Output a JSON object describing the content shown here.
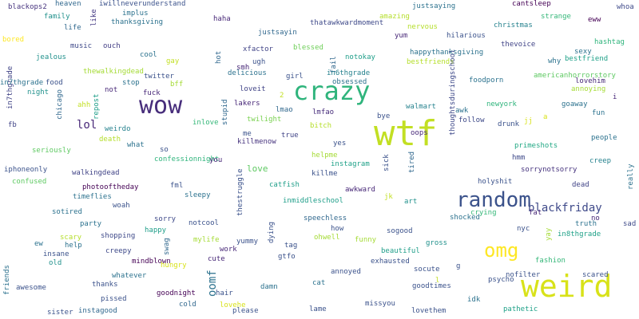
{
  "words": [
    {
      "text": "wtf",
      "color": "#c2df23",
      "weight": 1.0
    },
    {
      "text": "weird",
      "color": "#d8e219",
      "weight": 0.95
    },
    {
      "text": "crazy",
      "color": "#2fb47c",
      "weight": 0.85
    },
    {
      "text": "wow",
      "color": "#472d7b",
      "weight": 0.8
    },
    {
      "text": "random",
      "color": "#3b528b",
      "weight": 0.78
    },
    {
      "text": "omg",
      "color": "#fde725",
      "weight": 0.72
    },
    {
      "text": "blackfriday",
      "color": "#3e4989",
      "weight": 0.5
    },
    {
      "text": "lol",
      "color": "#482878",
      "weight": 0.42
    },
    {
      "text": "oomf",
      "color": "#2c728e",
      "weight": 0.4
    },
    {
      "text": "love",
      "color": "#5ec962",
      "weight": 0.35
    },
    {
      "text": "blackops2",
      "color": "#46337e"
    },
    {
      "text": "iwillneverunderstand",
      "color": "#3b528b"
    },
    {
      "text": "heaven",
      "color": "#31688e"
    },
    {
      "text": "justsaying",
      "color": "#2c728e"
    },
    {
      "text": "cantsleep",
      "color": "#440154"
    },
    {
      "text": "whoa",
      "color": "#3e4989"
    },
    {
      "text": "family",
      "color": "#21918c"
    },
    {
      "text": "implus",
      "color": "#2c728e"
    },
    {
      "text": "haha",
      "color": "#482878"
    },
    {
      "text": "thatawkwardmoment",
      "color": "#3e4989"
    },
    {
      "text": "amazing",
      "color": "#b5de2b"
    },
    {
      "text": "strange",
      "color": "#35b779"
    },
    {
      "text": "eww",
      "color": "#440154"
    },
    {
      "text": "thanksgiving",
      "color": "#2c728e"
    },
    {
      "text": "life",
      "color": "#31688e"
    },
    {
      "text": "like",
      "color": "#443983"
    },
    {
      "text": "nervous",
      "color": "#b5de2b"
    },
    {
      "text": "christmas",
      "color": "#26828e"
    },
    {
      "text": "justsayin",
      "color": "#31688e"
    },
    {
      "text": "yum",
      "color": "#482878"
    },
    {
      "text": "hilarious",
      "color": "#3b528b"
    },
    {
      "text": "hashtag",
      "color": "#2fb47c"
    },
    {
      "text": "bored",
      "color": "#fde725"
    },
    {
      "text": "music",
      "color": "#3e4989"
    },
    {
      "text": "ouch",
      "color": "#433e85"
    },
    {
      "text": "xfactor",
      "color": "#414487"
    },
    {
      "text": "blessed",
      "color": "#6ece58"
    },
    {
      "text": "thevoice",
      "color": "#414487"
    },
    {
      "text": "sexy",
      "color": "#2c728e"
    },
    {
      "text": "jealous",
      "color": "#21918c"
    },
    {
      "text": "cool",
      "color": "#2c728e"
    },
    {
      "text": "gay",
      "color": "#c2df23"
    },
    {
      "text": "hot",
      "color": "#31688e"
    },
    {
      "text": "ugh",
      "color": "#3b528b"
    },
    {
      "text": "fail",
      "color": "#31688e"
    },
    {
      "text": "notokay",
      "color": "#1f9e89"
    },
    {
      "text": "happythanksgiving",
      "color": "#2c728e"
    },
    {
      "text": "why",
      "color": "#2c728e"
    },
    {
      "text": "bestfriend",
      "color": "#1fa188"
    },
    {
      "text": "in7thgrade",
      "color": "#414487"
    },
    {
      "text": "thewalkingdead",
      "color": "#a5db36"
    },
    {
      "text": "twitter",
      "color": "#3b528b"
    },
    {
      "text": "smh",
      "color": "#482878"
    },
    {
      "text": "delicious",
      "color": "#2c728e"
    },
    {
      "text": "girl",
      "color": "#3b528b"
    },
    {
      "text": "in6thgrade",
      "color": "#26828e"
    },
    {
      "text": "bestfriends",
      "color": "#b5de2b"
    },
    {
      "text": "americanhorrorstory",
      "color": "#5ec962"
    },
    {
      "text": "food",
      "color": "#3b528b"
    },
    {
      "text": "stop",
      "color": "#2c728e"
    },
    {
      "text": "bff",
      "color": "#a5db36"
    },
    {
      "text": "obsessed",
      "color": "#2c728e"
    },
    {
      "text": "thoughtsduringschool",
      "color": "#3e4989"
    },
    {
      "text": "foodporn",
      "color": "#2c728e"
    },
    {
      "text": "lovehim",
      "color": "#482878"
    },
    {
      "text": "night",
      "color": "#21918c"
    },
    {
      "text": "not",
      "color": "#482878"
    },
    {
      "text": "fuck",
      "color": "#482878"
    },
    {
      "text": "loveit",
      "color": "#414487"
    },
    {
      "text": "2",
      "color": "#c2df23"
    },
    {
      "text": "annoying",
      "color": "#a5db36"
    },
    {
      "text": "i",
      "color": "#482878"
    },
    {
      "text": "in7thgrade",
      "color": "#2c728e"
    },
    {
      "text": "ahh",
      "color": "#c2df23"
    },
    {
      "text": "repost",
      "color": "#1f9e89"
    },
    {
      "text": "chicago",
      "color": "#31688e"
    },
    {
      "text": "lakers",
      "color": "#482878"
    },
    {
      "text": "lmao",
      "color": "#31688e"
    },
    {
      "text": "lmfao",
      "color": "#472d7b"
    },
    {
      "text": "walmart",
      "color": "#26828e"
    },
    {
      "text": "awk",
      "color": "#2c728e"
    },
    {
      "text": "newyork",
      "color": "#2fb47c"
    },
    {
      "text": "goaway",
      "color": "#2c728e"
    },
    {
      "text": "stupid",
      "color": "#31688e"
    },
    {
      "text": "twilight",
      "color": "#7ad151"
    },
    {
      "text": "bye",
      "color": "#3b528b"
    },
    {
      "text": "follow",
      "color": "#3e4989"
    },
    {
      "text": "fun",
      "color": "#2c728e"
    },
    {
      "text": "fb",
      "color": "#414487"
    },
    {
      "text": "weirdo",
      "color": "#26828e"
    },
    {
      "text": "inlove",
      "color": "#35b779"
    },
    {
      "text": "bitch",
      "color": "#b5de2b"
    },
    {
      "text": "oops",
      "color": "#482878"
    },
    {
      "text": "drunk",
      "color": "#3b528b"
    },
    {
      "text": "jj",
      "color": "#d8e219"
    },
    {
      "text": "a",
      "color": "#d8e219"
    },
    {
      "text": "death",
      "color": "#b5de2b"
    },
    {
      "text": "me",
      "color": "#3b528b"
    },
    {
      "text": "true",
      "color": "#414487"
    },
    {
      "text": "killmenow",
      "color": "#46337e"
    },
    {
      "text": "people",
      "color": "#2c728e"
    },
    {
      "text": "seriously",
      "color": "#5ec962"
    },
    {
      "text": "what",
      "color": "#2c728e"
    },
    {
      "text": "so",
      "color": "#3b528b"
    },
    {
      "text": "yes",
      "color": "#3b528b"
    },
    {
      "text": "primeshots",
      "color": "#22a884"
    },
    {
      "text": "confessionnight",
      "color": "#2fb47c"
    },
    {
      "text": "helpme",
      "color": "#a5db36"
    },
    {
      "text": "hmm",
      "color": "#3e4989"
    },
    {
      "text": "iphoneonly",
      "color": "#3b528b"
    },
    {
      "text": "you",
      "color": "#482878"
    },
    {
      "text": "instagram",
      "color": "#1fa188"
    },
    {
      "text": "creep",
      "color": "#26828e"
    },
    {
      "text": "walkingdead",
      "color": "#414487"
    },
    {
      "text": "sick",
      "color": "#3b528b"
    },
    {
      "text": "tired",
      "color": "#31688e"
    },
    {
      "text": "sorrynotsorry",
      "color": "#46337e"
    },
    {
      "text": "killme",
      "color": "#3b528b"
    },
    {
      "text": "really",
      "color": "#2c728e"
    },
    {
      "text": "confused",
      "color": "#5ec962"
    },
    {
      "text": "photooftheday",
      "color": "#440154"
    },
    {
      "text": "fml",
      "color": "#3b528b"
    },
    {
      "text": "catfish",
      "color": "#1f9e89"
    },
    {
      "text": "holyshit",
      "color": "#3b528b"
    },
    {
      "text": "dead",
      "color": "#414487"
    },
    {
      "text": "timeflies",
      "color": "#2c728e"
    },
    {
      "text": "sleepy",
      "color": "#2c728e"
    },
    {
      "text": "thestruggle",
      "color": "#3b528b"
    },
    {
      "text": "inmiddleschool",
      "color": "#1f9e89"
    },
    {
      "text": "awkward",
      "color": "#482878"
    },
    {
      "text": "jk",
      "color": "#c2df23"
    },
    {
      "text": "woah",
      "color": "#3b528b"
    },
    {
      "text": "art",
      "color": "#21918c"
    },
    {
      "text": "crying",
      "color": "#35b779"
    },
    {
      "text": "sotired",
      "color": "#2c728e"
    },
    {
      "text": "fat",
      "color": "#482878"
    },
    {
      "text": "truth",
      "color": "#2c728e"
    },
    {
      "text": "no",
      "color": "#482878"
    },
    {
      "text": "sad",
      "color": "#3e4989"
    },
    {
      "text": "party",
      "color": "#2c728e"
    },
    {
      "text": "sorry",
      "color": "#3e4989"
    },
    {
      "text": "notcool",
      "color": "#3b528b"
    },
    {
      "text": "speechless",
      "color": "#31688e"
    },
    {
      "text": "shocked",
      "color": "#2c728e"
    },
    {
      "text": "happy",
      "color": "#1f9e89"
    },
    {
      "text": "how",
      "color": "#3b528b"
    },
    {
      "text": "nyc",
      "color": "#3b528b"
    },
    {
      "text": "yay",
      "color": "#a5db36"
    },
    {
      "text": "in8thgrade",
      "color": "#1fa188"
    },
    {
      "text": "scary",
      "color": "#b5de2b"
    },
    {
      "text": "shopping",
      "color": "#3e4989"
    },
    {
      "text": "mylife",
      "color": "#a5db36"
    },
    {
      "text": "yummy",
      "color": "#3b528b"
    },
    {
      "text": "dying",
      "color": "#3b528b"
    },
    {
      "text": "sogood",
      "color": "#3b528b"
    },
    {
      "text": "ew",
      "color": "#2c728e"
    },
    {
      "text": "help",
      "color": "#2c728e"
    },
    {
      "text": "swag",
      "color": "#31688e"
    },
    {
      "text": "tag",
      "color": "#3b528b"
    },
    {
      "text": "ohwell",
      "color": "#a5db36"
    },
    {
      "text": "funny",
      "color": "#a5db36"
    },
    {
      "text": "insane",
      "color": "#3b528b"
    },
    {
      "text": "creepy",
      "color": "#3e4989"
    },
    {
      "text": "gross",
      "color": "#21918c"
    },
    {
      "text": "old",
      "color": "#21918c"
    },
    {
      "text": "mindblown",
      "color": "#440154"
    },
    {
      "text": "cute",
      "color": "#482878"
    },
    {
      "text": "work",
      "color": "#482878"
    },
    {
      "text": "gtfo",
      "color": "#3b528b"
    },
    {
      "text": "beautiful",
      "color": "#1f9e89"
    },
    {
      "text": "fashion",
      "color": "#35b779"
    },
    {
      "text": "hungry",
      "color": "#d8e219"
    },
    {
      "text": "exhausted",
      "color": "#3b528b"
    },
    {
      "text": "socute",
      "color": "#3b528b"
    },
    {
      "text": "g",
      "color": "#3b528b"
    },
    {
      "text": "friends",
      "color": "#2c728e"
    },
    {
      "text": "whatever",
      "color": "#2c728e"
    },
    {
      "text": "annoyed",
      "color": "#3b528b"
    },
    {
      "text": "nofilter",
      "color": "#3b528b"
    },
    {
      "text": "scared",
      "color": "#3b528b"
    },
    {
      "text": "awesome",
      "color": "#3b528b"
    },
    {
      "text": "thanks",
      "color": "#3b528b"
    },
    {
      "text": "goodnight",
      "color": "#440154"
    },
    {
      "text": "hair",
      "color": "#3b528b"
    },
    {
      "text": "damn",
      "color": "#2c728e"
    },
    {
      "text": "cat",
      "color": "#2c728e"
    },
    {
      "text": "goodtimes",
      "color": "#3b528b"
    },
    {
      "text": "l",
      "color": "#c2df23"
    },
    {
      "text": "psycho",
      "color": "#3b528b"
    },
    {
      "text": "pissed",
      "color": "#3b528b"
    },
    {
      "text": "cold",
      "color": "#31688e"
    },
    {
      "text": "lovehe",
      "color": "#d8e219"
    },
    {
      "text": "idk",
      "color": "#2c728e"
    },
    {
      "text": "pathetic",
      "color": "#1fa188"
    },
    {
      "text": "sister",
      "color": "#3b528b"
    },
    {
      "text": "instagood",
      "color": "#31688e"
    },
    {
      "text": "please",
      "color": "#3b528b"
    },
    {
      "text": "lame",
      "color": "#3b528b"
    },
    {
      "text": "missyou",
      "color": "#3b528b"
    },
    {
      "text": "lovethem",
      "color": "#3b528b"
    }
  ]
}
